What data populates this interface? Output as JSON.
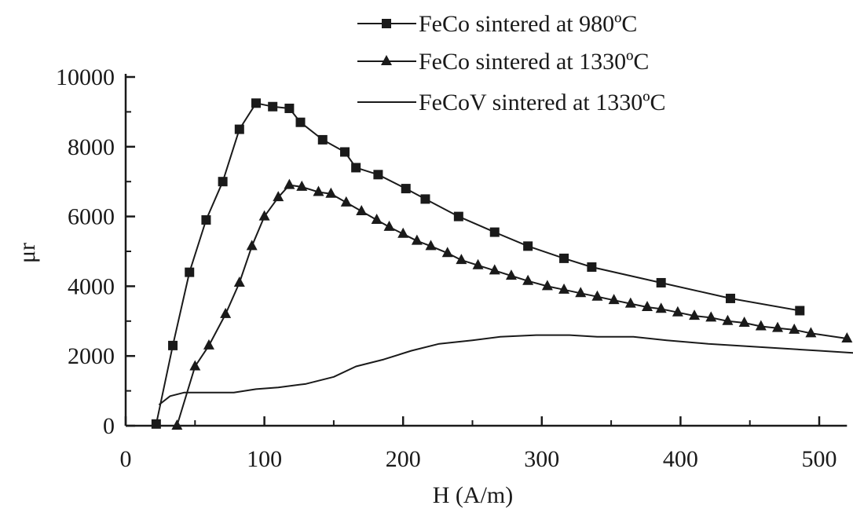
{
  "chart_data": {
    "type": "line",
    "title": "",
    "xlabel": "H (A/m)",
    "ylabel": "μr",
    "xlim": [
      0,
      520
    ],
    "ylim": [
      0,
      10000
    ],
    "xticks": [
      0,
      100,
      200,
      300,
      400,
      500
    ],
    "yticks": [
      0,
      2000,
      4000,
      6000,
      8000,
      10000
    ],
    "xtick_labels": [
      "0",
      "100",
      "200",
      "300",
      "400",
      "500"
    ],
    "ytick_labels": [
      "0",
      "2000",
      "4000",
      "6000",
      "8000",
      "10000"
    ],
    "grid": false,
    "legend_position": "top-right",
    "colors": {
      "ink": "#1a1a1a"
    },
    "series": [
      {
        "name": "FeCo sintered at 980ºC",
        "marker": "square",
        "x": [
          22,
          34,
          46,
          58,
          70,
          82,
          94,
          106,
          118,
          126,
          142,
          158,
          166,
          182,
          202,
          216,
          240,
          266,
          290,
          316,
          336,
          386,
          436,
          486
        ],
        "y": [
          50,
          2300,
          4400,
          5900,
          7000,
          8500,
          9250,
          9150,
          9100,
          8700,
          8200,
          7850,
          7400,
          7200,
          6800,
          6500,
          6000,
          5550,
          5150,
          4800,
          4550,
          4100,
          3650,
          3300
        ]
      },
      {
        "name": "FeCo sintered at 1330ºC",
        "marker": "triangle",
        "x": [
          37,
          50,
          60,
          72,
          82,
          91,
          100,
          110,
          118,
          127,
          139,
          148,
          159,
          170,
          181,
          190,
          200,
          210,
          220,
          232,
          242,
          254,
          266,
          278,
          290,
          304,
          316,
          328,
          340,
          352,
          364,
          376,
          386,
          398,
          410,
          422,
          434,
          446,
          458,
          470,
          482,
          494,
          520
        ],
        "y": [
          0,
          1700,
          2300,
          3200,
          4100,
          5150,
          6000,
          6550,
          6900,
          6850,
          6700,
          6650,
          6400,
          6150,
          5900,
          5700,
          5500,
          5300,
          5150,
          4950,
          4750,
          4600,
          4450,
          4300,
          4150,
          4000,
          3900,
          3800,
          3700,
          3600,
          3500,
          3400,
          3350,
          3250,
          3150,
          3100,
          3000,
          2950,
          2850,
          2800,
          2750,
          2650,
          2500
        ]
      },
      {
        "name": "FeCoV sintered at 1330ºC",
        "marker": "none",
        "x": [
          24,
          32,
          42,
          60,
          78,
          94,
          110,
          130,
          150,
          166,
          186,
          206,
          226,
          250,
          270,
          296,
          320,
          340,
          366,
          390,
          420,
          460,
          500,
          540
        ],
        "y": [
          600,
          850,
          950,
          950,
          950,
          1050,
          1100,
          1200,
          1400,
          1700,
          1900,
          2150,
          2350,
          2450,
          2550,
          2600,
          2600,
          2550,
          2550,
          2450,
          2350,
          2250,
          2150,
          2050
        ]
      }
    ]
  }
}
